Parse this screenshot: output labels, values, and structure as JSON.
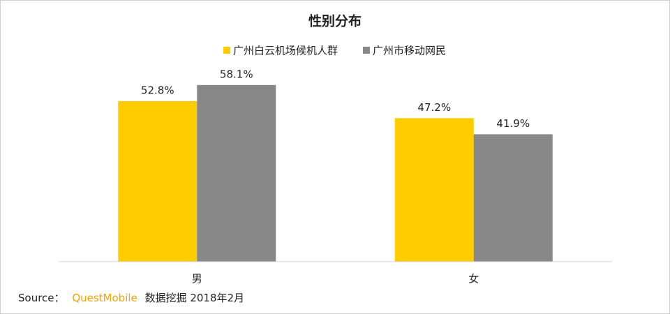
{
  "chart_data": {
    "type": "bar",
    "title": "性别分布",
    "categories": [
      "男",
      "女"
    ],
    "series": [
      {
        "name": "广州白云机场候机人群",
        "color": "#ffcc00",
        "values": [
          52.8,
          47.2
        ],
        "value_labels": [
          "52.8%",
          "47.2%"
        ]
      },
      {
        "name": "广州市移动网民",
        "color": "#888888",
        "values": [
          58.1,
          41.9
        ],
        "value_labels": [
          "58.1%",
          "41.9%"
        ]
      }
    ],
    "ylim": [
      0,
      70
    ],
    "legend": "top"
  },
  "source": {
    "label": "Source：",
    "brand": "QuestMobile",
    "text": "数据挖掘 2018年2月"
  }
}
